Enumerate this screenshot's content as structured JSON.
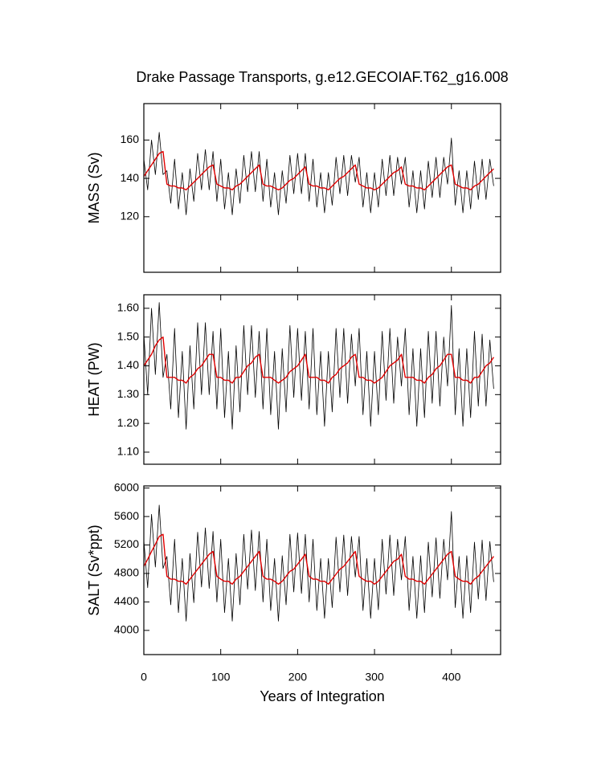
{
  "chart_data": [
    {
      "type": "line",
      "title": "Drake Passage Transports, g.e12.GECOIAF.T62_g16.008",
      "ylabel": "MASS (Sv)",
      "x": [
        0,
        5,
        10,
        15,
        20,
        25,
        30,
        35,
        40,
        45,
        50,
        55,
        60,
        65,
        70,
        75,
        80,
        85,
        90,
        95,
        100,
        105,
        110,
        115,
        120,
        125,
        130,
        135,
        140,
        145,
        150,
        155,
        160,
        165,
        170,
        175,
        180,
        185,
        190,
        195,
        200,
        205,
        210,
        215,
        220,
        225,
        230,
        235,
        240,
        245,
        250,
        255,
        260,
        265,
        270,
        275,
        280,
        285,
        290,
        295,
        300,
        305,
        310,
        315,
        320,
        325,
        330,
        335,
        340,
        345,
        350,
        355,
        360,
        365,
        370,
        375,
        380,
        385,
        390,
        395,
        400,
        405,
        410,
        415,
        420,
        425,
        430,
        435,
        440,
        445,
        450,
        455
      ],
      "xlim": [
        0,
        464
      ],
      "xticks": [
        0,
        100,
        200,
        300,
        400
      ],
      "ylim": [
        91,
        179
      ],
      "yticks": [
        120,
        140,
        160
      ],
      "series": [
        {
          "color": "#000000",
          "values": [
            150,
            134,
            160,
            142,
            164,
            142,
            144,
            127,
            150,
            124,
            143,
            121,
            145,
            128,
            153,
            134,
            155,
            134,
            154,
            128,
            150,
            124,
            143,
            121,
            145,
            127,
            152,
            133,
            154,
            133,
            154,
            128,
            150,
            125,
            143,
            121,
            144,
            127,
            152,
            132,
            153,
            132,
            153,
            128,
            150,
            125,
            143,
            122,
            143,
            126,
            151,
            132,
            152,
            131,
            152,
            138,
            151,
            125,
            143,
            122,
            143,
            125,
            150,
            131,
            152,
            131,
            151,
            137,
            151,
            125,
            144,
            122,
            144,
            124,
            149,
            130,
            151,
            130,
            151,
            137,
            161,
            126,
            144,
            122,
            144,
            124,
            149,
            129,
            150,
            129,
            150,
            136
          ]
        },
        {
          "color": "#e00000",
          "values": [
            141,
            144,
            147,
            150,
            153,
            154,
            137,
            136,
            136,
            135,
            135,
            134,
            136,
            138,
            140,
            142,
            144,
            146,
            147,
            137,
            136,
            135,
            135,
            134,
            136,
            137,
            139,
            141,
            143,
            145,
            147,
            137,
            136,
            136,
            135,
            134,
            135,
            137,
            139,
            140,
            142,
            144,
            146,
            137,
            136,
            136,
            135,
            135,
            134,
            136,
            138,
            140,
            141,
            143,
            145,
            147,
            137,
            136,
            135,
            135,
            134,
            135,
            137,
            139,
            141,
            143,
            144,
            146,
            137,
            136,
            136,
            135,
            135,
            134,
            136,
            138,
            140,
            142,
            144,
            146,
            147,
            137,
            136,
            135,
            135,
            134,
            136,
            137,
            139,
            141,
            143,
            145
          ]
        }
      ]
    },
    {
      "type": "line",
      "ylabel": "HEAT (PW)",
      "x": [
        0,
        5,
        10,
        15,
        20,
        25,
        30,
        35,
        40,
        45,
        50,
        55,
        60,
        65,
        70,
        75,
        80,
        85,
        90,
        95,
        100,
        105,
        110,
        115,
        120,
        125,
        130,
        135,
        140,
        145,
        150,
        155,
        160,
        165,
        170,
        175,
        180,
        185,
        190,
        195,
        200,
        205,
        210,
        215,
        220,
        225,
        230,
        235,
        240,
        245,
        250,
        255,
        260,
        265,
        270,
        275,
        280,
        285,
        290,
        295,
        300,
        305,
        310,
        315,
        320,
        325,
        330,
        335,
        340,
        345,
        350,
        355,
        360,
        365,
        370,
        375,
        380,
        385,
        390,
        395,
        400,
        405,
        410,
        415,
        420,
        425,
        430,
        435,
        440,
        445,
        450,
        455
      ],
      "xlim": [
        0,
        464
      ],
      "xticks": [
        0,
        100,
        200,
        300,
        400
      ],
      "ylim": [
        1.058,
        1.647
      ],
      "yticks": [
        {
          "value": 1.1,
          "label": "1.10"
        },
        {
          "value": 1.2,
          "label": "1.20"
        },
        {
          "value": 1.3,
          "label": "1.30"
        },
        {
          "value": 1.4,
          "label": "1.40"
        },
        {
          "value": 1.5,
          "label": "1.50"
        },
        {
          "value": 1.6,
          "label": "1.60"
        }
      ],
      "series": [
        {
          "color": "#000000",
          "values": [
            1.51,
            1.3,
            1.6,
            1.37,
            1.62,
            1.36,
            1.44,
            1.25,
            1.53,
            1.22,
            1.45,
            1.18,
            1.47,
            1.25,
            1.55,
            1.3,
            1.55,
            1.3,
            1.52,
            1.25,
            1.53,
            1.22,
            1.45,
            1.18,
            1.47,
            1.24,
            1.54,
            1.3,
            1.54,
            1.29,
            1.52,
            1.25,
            1.53,
            1.23,
            1.45,
            1.18,
            1.46,
            1.24,
            1.54,
            1.29,
            1.53,
            1.28,
            1.52,
            1.25,
            1.53,
            1.23,
            1.45,
            1.19,
            1.45,
            1.24,
            1.53,
            1.29,
            1.53,
            1.27,
            1.51,
            1.33,
            1.53,
            1.23,
            1.45,
            1.19,
            1.45,
            1.23,
            1.52,
            1.28,
            1.53,
            1.27,
            1.5,
            1.33,
            1.53,
            1.23,
            1.46,
            1.19,
            1.46,
            1.22,
            1.52,
            1.27,
            1.52,
            1.26,
            1.5,
            1.33,
            1.61,
            1.23,
            1.46,
            1.19,
            1.46,
            1.22,
            1.52,
            1.26,
            1.51,
            1.26,
            1.49,
            1.32
          ]
        },
        {
          "color": "#e00000",
          "values": [
            1.4,
            1.42,
            1.44,
            1.47,
            1.49,
            1.5,
            1.36,
            1.36,
            1.36,
            1.35,
            1.35,
            1.34,
            1.36,
            1.37,
            1.39,
            1.4,
            1.42,
            1.44,
            1.44,
            1.36,
            1.36,
            1.35,
            1.35,
            1.34,
            1.36,
            1.36,
            1.38,
            1.4,
            1.41,
            1.43,
            1.44,
            1.36,
            1.36,
            1.36,
            1.35,
            1.34,
            1.35,
            1.36,
            1.38,
            1.39,
            1.4,
            1.42,
            1.44,
            1.36,
            1.36,
            1.36,
            1.35,
            1.35,
            1.34,
            1.36,
            1.37,
            1.39,
            1.4,
            1.41,
            1.43,
            1.44,
            1.36,
            1.36,
            1.35,
            1.35,
            1.34,
            1.35,
            1.36,
            1.38,
            1.4,
            1.41,
            1.42,
            1.44,
            1.36,
            1.36,
            1.36,
            1.35,
            1.35,
            1.34,
            1.36,
            1.37,
            1.39,
            1.4,
            1.42,
            1.44,
            1.44,
            1.36,
            1.36,
            1.35,
            1.35,
            1.34,
            1.36,
            1.36,
            1.38,
            1.4,
            1.41,
            1.43
          ]
        }
      ]
    },
    {
      "type": "line",
      "ylabel": "SALT (Sv*ppt)",
      "xlabel": "Years of Integration",
      "x": [
        0,
        5,
        10,
        15,
        20,
        25,
        30,
        35,
        40,
        45,
        50,
        55,
        60,
        65,
        70,
        75,
        80,
        85,
        90,
        95,
        100,
        105,
        110,
        115,
        120,
        125,
        130,
        135,
        140,
        145,
        150,
        155,
        160,
        165,
        170,
        175,
        180,
        185,
        190,
        195,
        200,
        205,
        210,
        215,
        220,
        225,
        230,
        235,
        240,
        245,
        250,
        255,
        260,
        265,
        270,
        275,
        280,
        285,
        290,
        295,
        300,
        305,
        310,
        315,
        320,
        325,
        330,
        335,
        340,
        345,
        350,
        355,
        360,
        365,
        370,
        375,
        380,
        385,
        390,
        395,
        400,
        405,
        410,
        415,
        420,
        425,
        430,
        435,
        440,
        445,
        450,
        455
      ],
      "xlim": [
        0,
        464
      ],
      "xticks": [
        0,
        100,
        200,
        300,
        400
      ],
      "ylim": [
        3660,
        6030
      ],
      "yticks": [
        4000,
        4400,
        4800,
        5200,
        5600,
        6000
      ],
      "series": [
        {
          "color": "#000000",
          "values": [
            5260,
            4600,
            5630,
            4890,
            5760,
            4870,
            5040,
            4360,
            5280,
            4250,
            5010,
            4130,
            5080,
            4390,
            5380,
            4610,
            5440,
            4590,
            5390,
            4400,
            5280,
            4250,
            5010,
            4130,
            5080,
            4360,
            5350,
            4580,
            5410,
            4560,
            5390,
            4400,
            5280,
            4280,
            5010,
            4130,
            5050,
            4360,
            5350,
            4540,
            5370,
            4520,
            5350,
            4400,
            5280,
            4280,
            5010,
            4170,
            5010,
            4320,
            5310,
            4540,
            5340,
            4490,
            5320,
            4750,
            5320,
            4280,
            5010,
            4170,
            5010,
            4290,
            5280,
            4510,
            5340,
            4490,
            5280,
            4710,
            5320,
            4280,
            5040,
            4170,
            5050,
            4250,
            5240,
            4470,
            5300,
            4450,
            5280,
            4710,
            5670,
            4320,
            5040,
            4170,
            5050,
            4250,
            5240,
            4440,
            5270,
            4420,
            5250,
            4680
          ]
        },
        {
          "color": "#e00000",
          "values": [
            4900,
            5000,
            5110,
            5210,
            5320,
            5350,
            4760,
            4720,
            4720,
            4690,
            4690,
            4650,
            4720,
            4790,
            4860,
            4930,
            5000,
            5070,
            5110,
            4760,
            4720,
            4690,
            4690,
            4650,
            4720,
            4760,
            4830,
            4900,
            4970,
            5040,
            5110,
            4760,
            4720,
            4720,
            4690,
            4650,
            4690,
            4760,
            4830,
            4860,
            4930,
            5000,
            5070,
            4760,
            4720,
            4720,
            4690,
            4690,
            4650,
            4720,
            4790,
            4860,
            4900,
            4970,
            5040,
            5110,
            4760,
            4720,
            4690,
            4690,
            4650,
            4690,
            4760,
            4830,
            4900,
            4970,
            5000,
            5070,
            4760,
            4720,
            4720,
            4690,
            4690,
            4650,
            4720,
            4790,
            4860,
            4930,
            5000,
            5070,
            5110,
            4760,
            4720,
            4690,
            4690,
            4650,
            4720,
            4760,
            4830,
            4900,
            4970,
            5040
          ]
        }
      ]
    }
  ]
}
